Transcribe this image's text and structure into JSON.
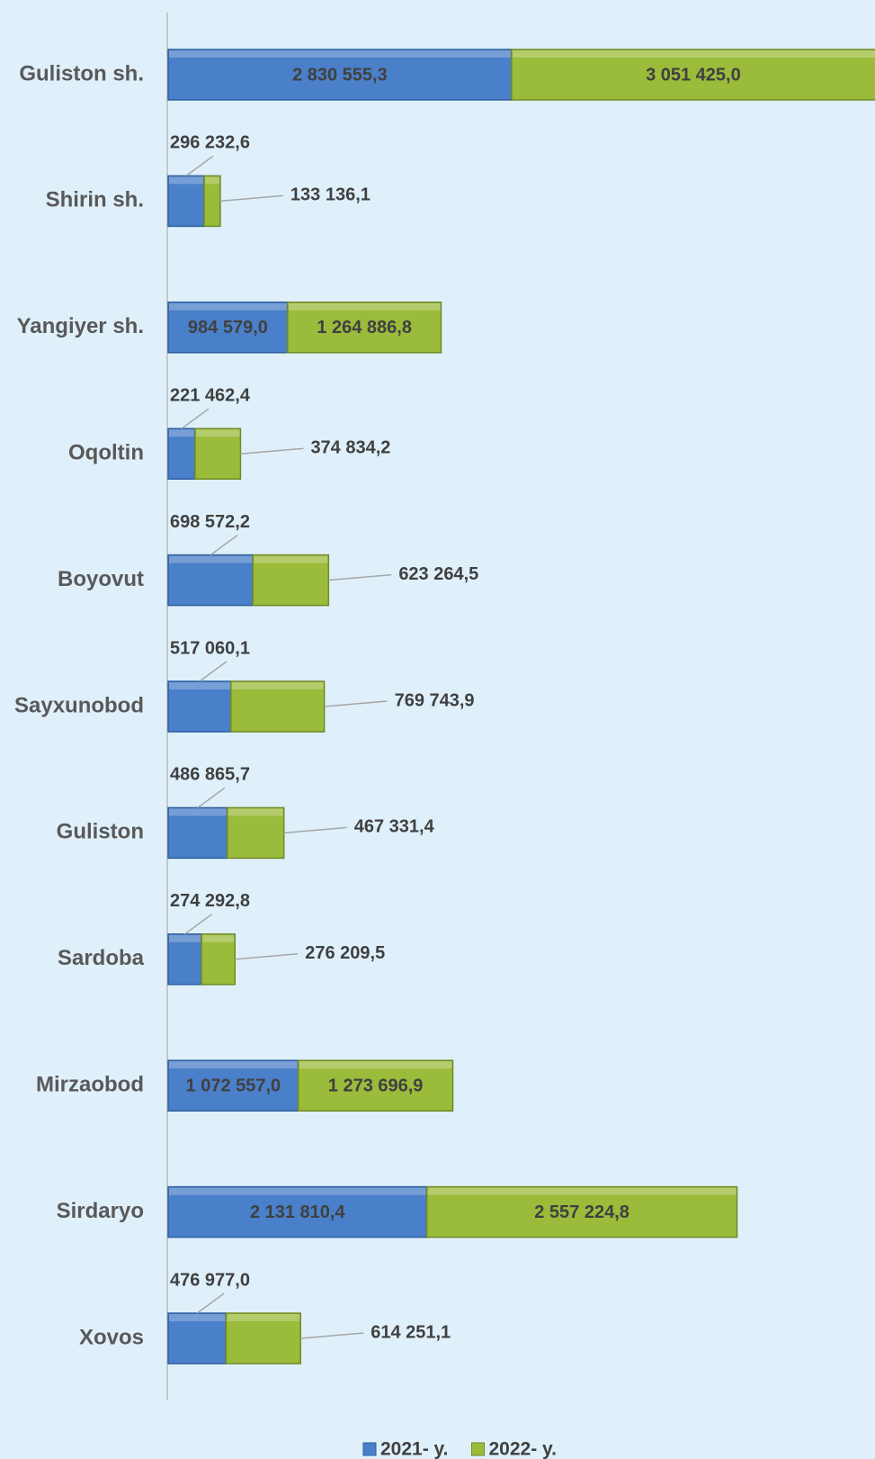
{
  "chart_data": {
    "type": "stacked_bar_horizontal",
    "categories": [
      "Guliston sh.",
      "Shirin sh.",
      "Yangiyer sh.",
      "Oqoltin",
      "Boyovut",
      "Sayxunobod",
      "Guliston",
      "Sardoba",
      "Mirzaobod",
      "Sirdaryo",
      "Xovos"
    ],
    "series": [
      {
        "name": "2021- y.",
        "color": "#4a7fc9",
        "values": [
          2830555.3,
          296232.6,
          984579.0,
          221462.4,
          698572.2,
          517060.1,
          486865.7,
          274292.8,
          1072557.0,
          2131810.4,
          476977.0
        ],
        "value_labels": [
          "2 830 555,3",
          "296 232,6",
          "984 579,0",
          "221 462,4",
          "698 572,2",
          "517 060,1",
          "486 865,7",
          "274 292,8",
          "1 072 557,0",
          "2 131 810,4",
          "476 977,0"
        ]
      },
      {
        "name": "2022- y.",
        "color": "#9bbb3b",
        "values": [
          3051425.0,
          133136.1,
          1264886.8,
          374834.2,
          623264.5,
          769743.9,
          467331.4,
          276209.5,
          1273696.9,
          2557224.8,
          614251.1
        ],
        "value_labels": [
          "3 051 425,0",
          "133 136,1",
          "1 264 886,8",
          "374 834,2",
          "623 264,5",
          "769 743,9",
          "467 331,4",
          "276 209,5",
          "1 273 696,9",
          "2 557 224,8",
          "614 251,1"
        ]
      }
    ],
    "legend": "bottom"
  }
}
